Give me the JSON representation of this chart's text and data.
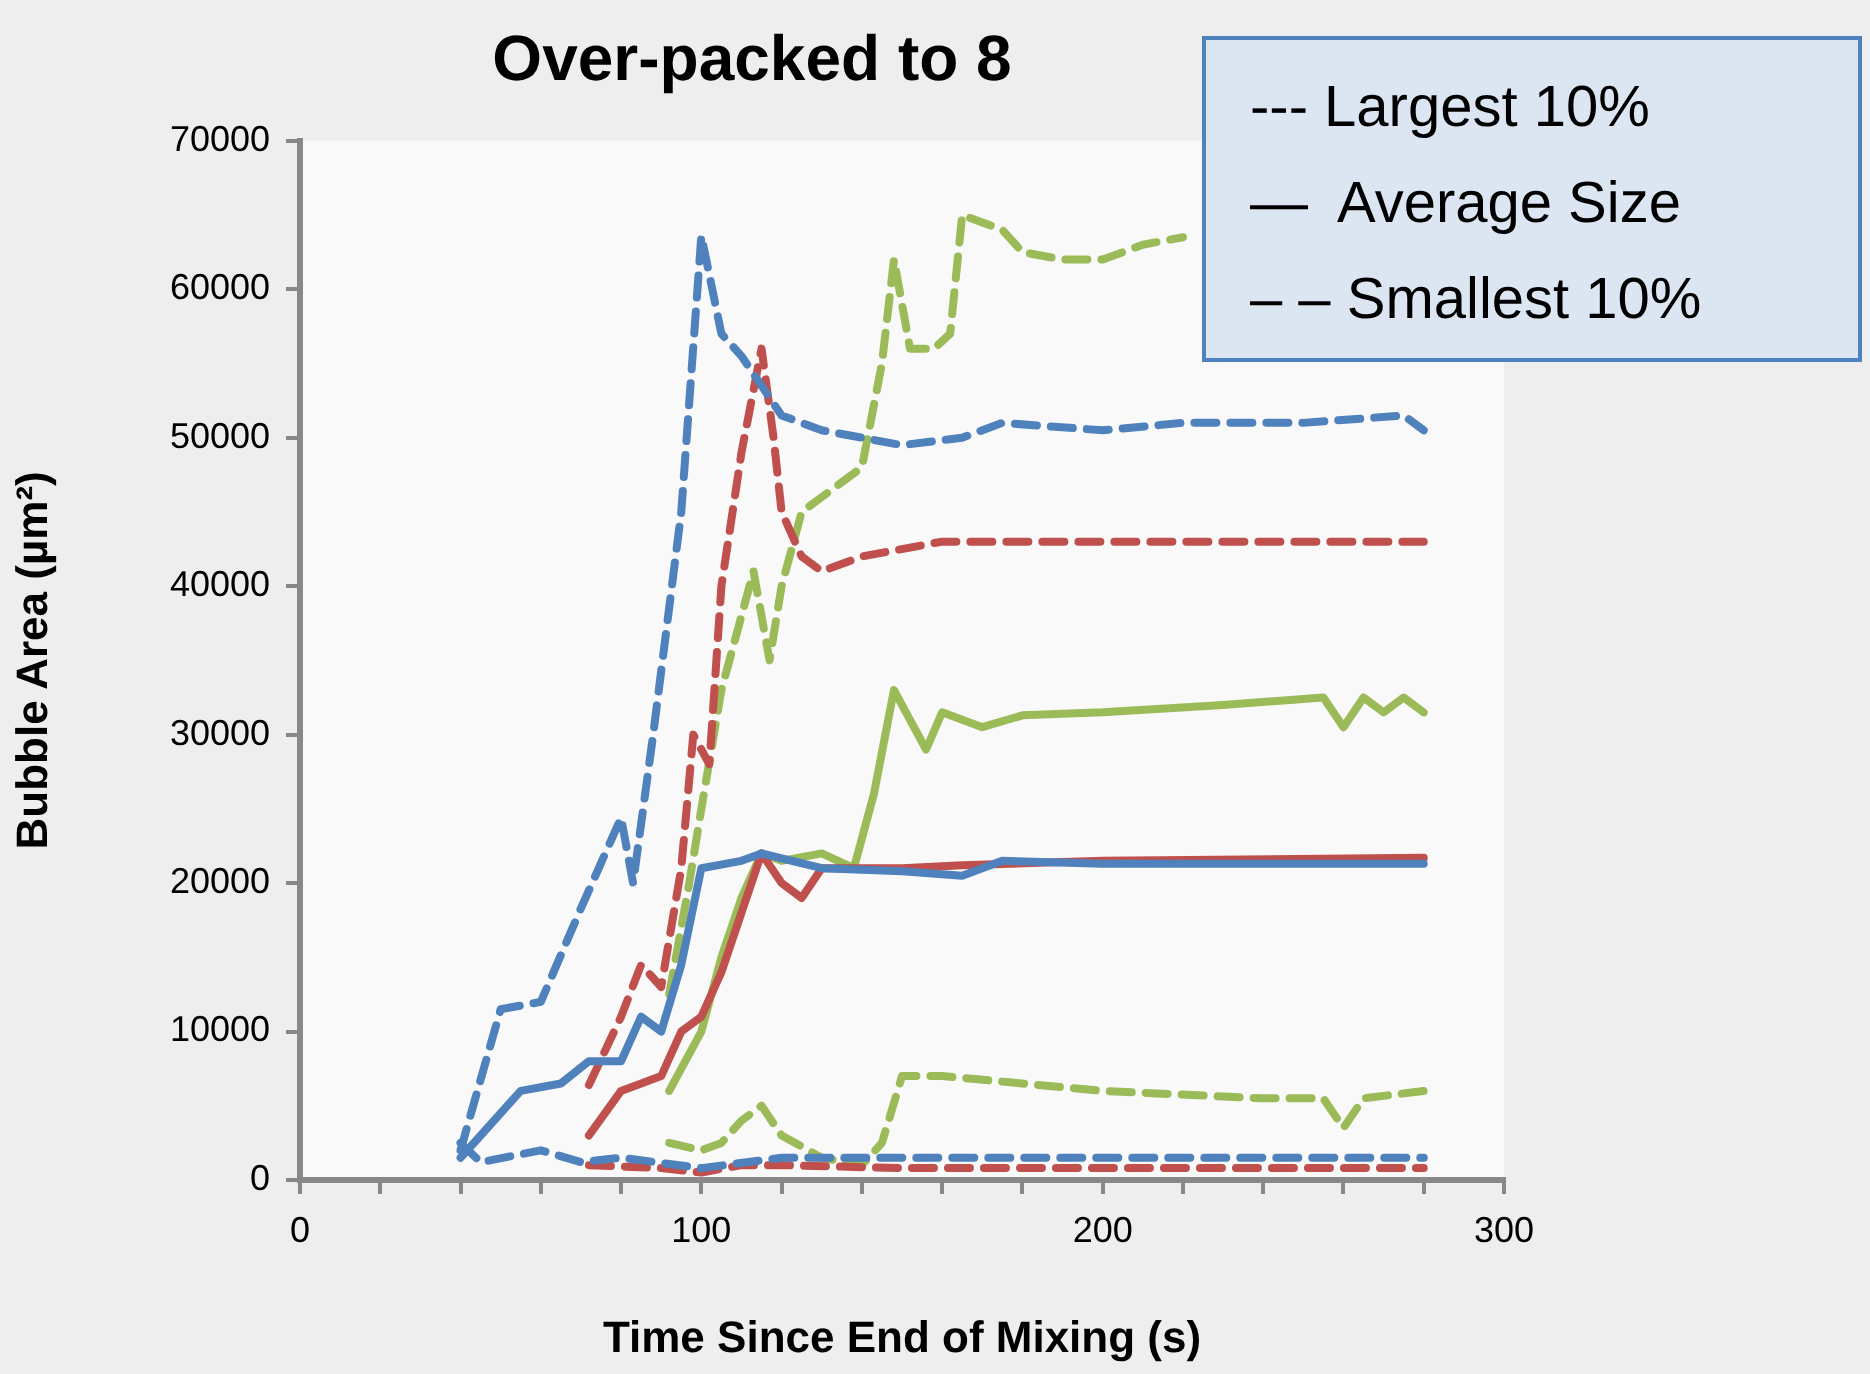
{
  "chart_data": {
    "type": "line",
    "title": "Over-packed to 8",
    "xlabel": "Time Since End of Mixing (s)",
    "ylabel": "Bubble Area (µm²)",
    "xlim": [
      0,
      300
    ],
    "xticks": [
      0,
      {
        "value": 20,
        "label": null
      },
      {
        "value": 40,
        "label": null
      },
      {
        "value": 60,
        "label": null
      },
      {
        "value": 80,
        "label": null
      },
      100,
      {
        "value": 120,
        "label": null
      },
      {
        "value": 140,
        "label": null
      },
      {
        "value": 160,
        "label": null
      },
      {
        "value": 180,
        "label": null
      },
      200,
      {
        "value": 220,
        "label": null
      },
      {
        "value": 240,
        "label": null
      },
      {
        "value": 260,
        "label": null
      },
      {
        "value": 280,
        "label": null
      },
      300
    ],
    "ylim": [
      0,
      70000
    ],
    "yticks": [
      0,
      10000,
      20000,
      30000,
      40000,
      50000,
      60000,
      70000
    ],
    "grid": false,
    "legend": false,
    "marker": "none",
    "annotations": [
      "--- Largest 10%",
      "—  Average Size",
      "– – Smallest 10%"
    ],
    "series": [
      {
        "color": "#4f81bd",
        "line_style": "dashed",
        "x": [
          40,
          50,
          60,
          70,
          80,
          83,
          88,
          95,
          100,
          105,
          110,
          115,
          120,
          130,
          150,
          165,
          175,
          200,
          220,
          250,
          275,
          280
        ],
        "values": [
          2000,
          11500,
          12000,
          18300,
          24400,
          20000,
          30000,
          45000,
          63600,
          57000,
          55500,
          53500,
          51500,
          50500,
          49500,
          50000,
          51000,
          50500,
          51000,
          51000,
          51500,
          50500
        ]
      },
      {
        "color": "#4f81bd",
        "line_style": "solid",
        "x": [
          40,
          45,
          55,
          65,
          72,
          80,
          85,
          90,
          95,
          100,
          110,
          115,
          130,
          150,
          165,
          175,
          200,
          280
        ],
        "values": [
          1500,
          3000,
          6000,
          6500,
          8000,
          8000,
          11000,
          10000,
          14500,
          21000,
          21500,
          22000,
          21000,
          20800,
          20500,
          21500,
          21300,
          21300
        ]
      },
      {
        "color": "#4f81bd",
        "line_style": "dashed",
        "x": [
          40,
          45,
          60,
          70,
          80,
          100,
          120,
          150,
          280
        ],
        "values": [
          2500,
          1200,
          2000,
          1200,
          1500,
          800,
          1500,
          1500,
          1500
        ]
      },
      {
        "color": "#c0504d",
        "line_style": "dashed",
        "x": [
          72,
          80,
          85,
          90,
          95,
          98,
          102,
          105,
          110,
          115,
          118,
          120,
          125,
          130,
          140,
          160,
          200,
          280
        ],
        "values": [
          6400,
          11000,
          14500,
          13000,
          21000,
          30000,
          28000,
          40000,
          49000,
          56000,
          50000,
          45000,
          42000,
          41000,
          42000,
          43000,
          43000,
          43000
        ]
      },
      {
        "color": "#c0504d",
        "line_style": "solid",
        "x": [
          72,
          80,
          90,
          95,
          100,
          105,
          110,
          115,
          120,
          125,
          130,
          140,
          150,
          165,
          200,
          280
        ],
        "values": [
          3000,
          6000,
          7000,
          10000,
          11000,
          14000,
          18000,
          22000,
          20000,
          19000,
          21000,
          21000,
          21000,
          21200,
          21500,
          21700
        ]
      },
      {
        "color": "#c0504d",
        "line_style": "dashed",
        "x": [
          72,
          90,
          100,
          110,
          120,
          150,
          280
        ],
        "values": [
          1000,
          800,
          500,
          1000,
          1000,
          800,
          800
        ]
      },
      {
        "color": "#9bbb59",
        "line_style": "dashed",
        "x": [
          92,
          97,
          100,
          105,
          110,
          113,
          117,
          120,
          125,
          130,
          140,
          145,
          148,
          152,
          158,
          162,
          165,
          175,
          180,
          190,
          200,
          210,
          220
        ],
        "values": [
          12500,
          20000,
          25000,
          33000,
          38000,
          41000,
          35000,
          40000,
          45000,
          46000,
          48000,
          55000,
          62000,
          56000,
          56000,
          57000,
          65000,
          64000,
          62500,
          62000,
          62000,
          63000,
          63500
        ]
      },
      {
        "color": "#9bbb59",
        "line_style": "solid",
        "x": [
          92,
          100,
          105,
          110,
          115,
          120,
          130,
          138,
          143,
          148,
          152,
          156,
          160,
          170,
          180,
          200,
          230,
          255,
          260,
          265,
          270,
          275,
          280
        ],
        "values": [
          6000,
          10000,
          15000,
          19000,
          22000,
          21500,
          22000,
          21000,
          26000,
          33000,
          31000,
          29000,
          31500,
          30500,
          31300,
          31500,
          32000,
          32500,
          30500,
          32500,
          31500,
          32500,
          31500
        ]
      },
      {
        "color": "#9bbb59",
        "line_style": "dashed",
        "x": [
          92,
          100,
          105,
          110,
          115,
          120,
          130,
          140,
          145,
          150,
          160,
          180,
          200,
          240,
          255,
          260,
          265,
          280
        ],
        "values": [
          2500,
          2000,
          2500,
          4000,
          5000,
          3000,
          1500,
          1000,
          2500,
          7000,
          7000,
          6500,
          6000,
          5500,
          5500,
          3500,
          5500,
          6000
        ]
      }
    ]
  }
}
